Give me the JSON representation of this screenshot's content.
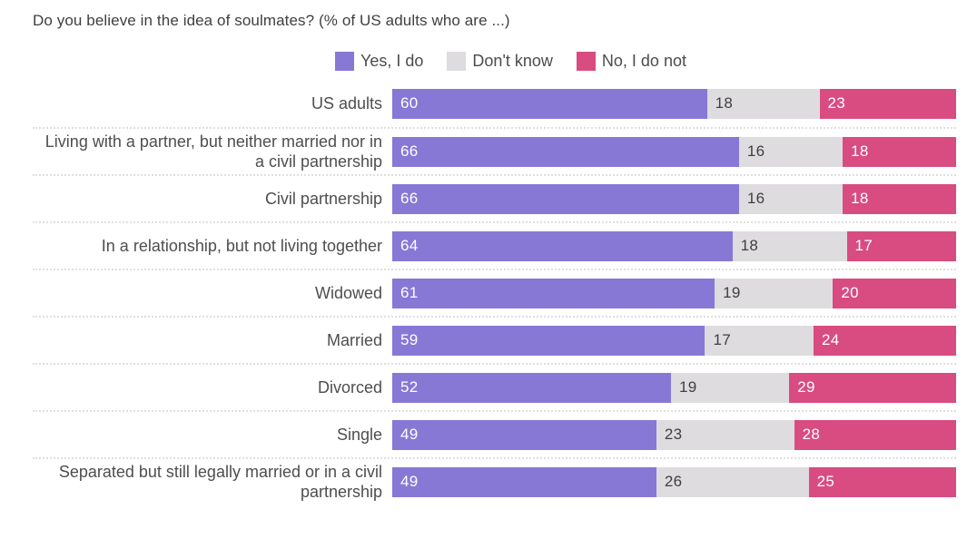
{
  "chart_data": {
    "type": "bar",
    "subtype": "horizontal-stacked-100pct",
    "title": "Do you believe in the idea of soulmates? (% of US adults who are ...)",
    "legend_position": "top-center",
    "grid": "dotted-row-separators",
    "xlim": [
      0,
      100
    ],
    "value_labels": "inside-left",
    "legend": [
      {
        "label": "Yes, I do",
        "color": "#8878d6",
        "text_color": "#ffffff"
      },
      {
        "label": "Don't know",
        "color": "#dedcdf",
        "text_color": "#3f3f41"
      },
      {
        "label": "No, I do not",
        "color": "#d84c82",
        "text_color": "#ffffff"
      }
    ],
    "categories": [
      "US adults",
      "Living with a partner, but neither married nor in a civil partnership",
      "Civil partnership",
      "In a relationship, but not living together",
      "Widowed",
      "Married",
      "Divorced",
      "Single",
      "Separated but still legally married or in a civil partnership"
    ],
    "series": [
      {
        "name": "Yes, I do",
        "values": [
          60,
          66,
          66,
          64,
          61,
          59,
          52,
          49,
          49
        ]
      },
      {
        "name": "Don't know",
        "values": [
          18,
          16,
          16,
          18,
          19,
          17,
          19,
          23,
          26
        ]
      },
      {
        "name": "No, I do not",
        "values": [
          23,
          18,
          18,
          17,
          20,
          24,
          29,
          28,
          25
        ]
      }
    ]
  }
}
